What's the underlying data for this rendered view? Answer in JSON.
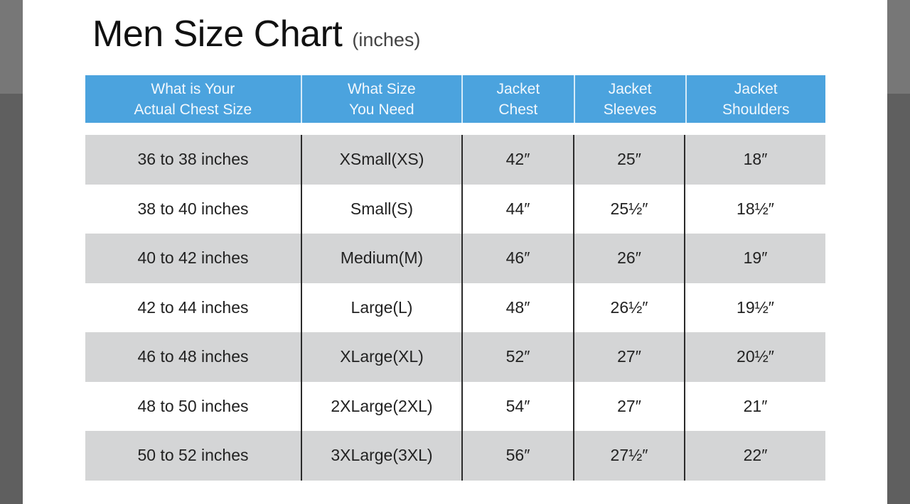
{
  "title": "Men Size Chart",
  "unit": "(inches)",
  "colors": {
    "header_bg": "#4ba3de",
    "shaded_row": "#d4d5d6",
    "backdrop": "#5f5f5f"
  },
  "headers": [
    "What is Your\nActual Chest Size",
    "What Size\nYou Need",
    "Jacket\nChest",
    "Jacket\nSleeves",
    "Jacket\nShoulders"
  ],
  "rows": [
    [
      "36 to 38 inches",
      "XSmall(XS)",
      "42″",
      "25″",
      "18″"
    ],
    [
      "38 to 40 inches",
      "Small(S)",
      "44″",
      "25½″",
      "18½″"
    ],
    [
      "40 to 42 inches",
      "Medium(M)",
      "46″",
      "26″",
      "19″"
    ],
    [
      "42 to 44 inches",
      "Large(L)",
      "48″",
      "26½″",
      "19½″"
    ],
    [
      "46 to 48 inches",
      "XLarge(XL)",
      "52″",
      "27″",
      "20½″"
    ],
    [
      "48 to 50 inches",
      "2XLarge(2XL)",
      "54″",
      "27″",
      "21″"
    ],
    [
      "50 to 52 inches",
      "3XLarge(3XL)",
      "56″",
      "27½″",
      "22″"
    ]
  ]
}
